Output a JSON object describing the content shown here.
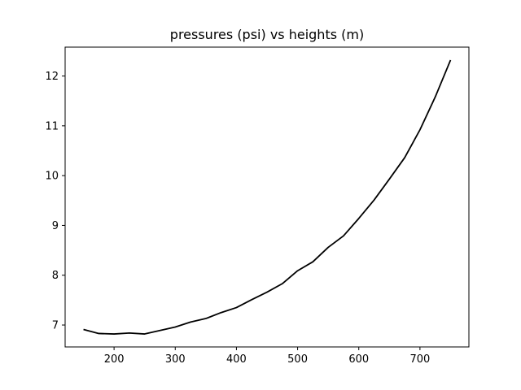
{
  "chart_data": {
    "type": "line",
    "title": "pressures (psi) vs heights (m)",
    "xlabel": "",
    "ylabel": "",
    "xlim": [
      120,
      780
    ],
    "ylim": [
      6.56,
      12.58
    ],
    "x_ticks": [
      200,
      300,
      400,
      500,
      600,
      700
    ],
    "y_ticks": [
      7,
      8,
      9,
      10,
      11,
      12
    ],
    "grid": false,
    "series": [
      {
        "color": "#000000",
        "x": [
          150,
          175,
          200,
          225,
          250,
          275,
          300,
          325,
          350,
          375,
          400,
          425,
          450,
          475,
          500,
          525,
          550,
          575,
          600,
          625,
          650,
          675,
          700,
          725,
          750
        ],
        "y": [
          6.91,
          6.83,
          6.82,
          6.84,
          6.82,
          6.89,
          6.96,
          7.06,
          7.13,
          7.25,
          7.35,
          7.51,
          7.66,
          7.83,
          8.09,
          8.27,
          8.56,
          8.79,
          9.14,
          9.51,
          9.93,
          10.36,
          10.92,
          11.58,
          12.32
        ]
      }
    ]
  }
}
